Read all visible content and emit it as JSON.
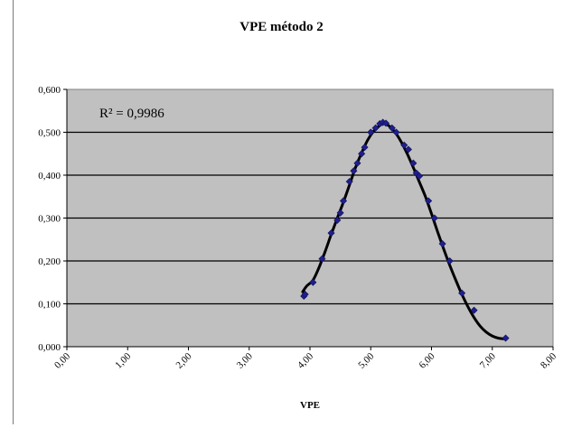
{
  "chart_data": {
    "type": "scatter",
    "title": "VPE método 2",
    "xlabel": "VPE",
    "ylabel": "",
    "xlim": [
      0,
      8
    ],
    "ylim": [
      0,
      0.6
    ],
    "x_ticks": [
      "0,00",
      "1,00",
      "2,00",
      "3,00",
      "4,00",
      "5,00",
      "6,00",
      "7,00",
      "8,00"
    ],
    "y_ticks": [
      "0,000",
      "0,100",
      "0,200",
      "0,300",
      "0,400",
      "0,500",
      "0,600"
    ],
    "grid": "horizontal",
    "plot_background": "#c0c0c0",
    "marker_color": "#1f1f8f",
    "annotation": "R² = 0,9986",
    "series": [
      {
        "type": "scatter",
        "points": [
          [
            3.9,
            0.118
          ],
          [
            3.92,
            0.122
          ],
          [
            4.05,
            0.15
          ],
          [
            4.2,
            0.205
          ],
          [
            4.35,
            0.265
          ],
          [
            4.45,
            0.295
          ],
          [
            4.5,
            0.312
          ],
          [
            4.55,
            0.34
          ],
          [
            4.65,
            0.385
          ],
          [
            4.72,
            0.41
          ],
          [
            4.78,
            0.428
          ],
          [
            4.85,
            0.45
          ],
          [
            4.9,
            0.465
          ],
          [
            5.0,
            0.5
          ],
          [
            5.08,
            0.51
          ],
          [
            5.15,
            0.52
          ],
          [
            5.2,
            0.523
          ],
          [
            5.25,
            0.521
          ],
          [
            5.35,
            0.51
          ],
          [
            5.42,
            0.5
          ],
          [
            5.55,
            0.47
          ],
          [
            5.62,
            0.46
          ],
          [
            5.7,
            0.428
          ],
          [
            5.75,
            0.405
          ],
          [
            5.8,
            0.398
          ],
          [
            5.95,
            0.34
          ],
          [
            6.05,
            0.3
          ],
          [
            6.18,
            0.24
          ],
          [
            6.3,
            0.2
          ],
          [
            6.5,
            0.125
          ],
          [
            6.7,
            0.085
          ],
          [
            7.22,
            0.02
          ]
        ]
      },
      {
        "type": "trendline",
        "points": [
          [
            3.88,
            0.128
          ],
          [
            3.95,
            0.142
          ],
          [
            4.05,
            0.155
          ],
          [
            4.15,
            0.185
          ],
          [
            4.25,
            0.222
          ],
          [
            4.35,
            0.262
          ],
          [
            4.45,
            0.3
          ],
          [
            4.55,
            0.337
          ],
          [
            4.65,
            0.377
          ],
          [
            4.75,
            0.418
          ],
          [
            4.85,
            0.452
          ],
          [
            4.95,
            0.482
          ],
          [
            5.05,
            0.503
          ],
          [
            5.15,
            0.516
          ],
          [
            5.22,
            0.52
          ],
          [
            5.3,
            0.515
          ],
          [
            5.4,
            0.5
          ],
          [
            5.5,
            0.478
          ],
          [
            5.6,
            0.45
          ],
          [
            5.7,
            0.418
          ],
          [
            5.8,
            0.384
          ],
          [
            5.9,
            0.35
          ],
          [
            6.0,
            0.31
          ],
          [
            6.1,
            0.268
          ],
          [
            6.2,
            0.228
          ],
          [
            6.3,
            0.19
          ],
          [
            6.4,
            0.155
          ],
          [
            6.5,
            0.122
          ],
          [
            6.6,
            0.093
          ],
          [
            6.7,
            0.068
          ],
          [
            6.8,
            0.048
          ],
          [
            6.9,
            0.034
          ],
          [
            7.0,
            0.025
          ],
          [
            7.1,
            0.02
          ],
          [
            7.22,
            0.018
          ]
        ]
      }
    ]
  }
}
